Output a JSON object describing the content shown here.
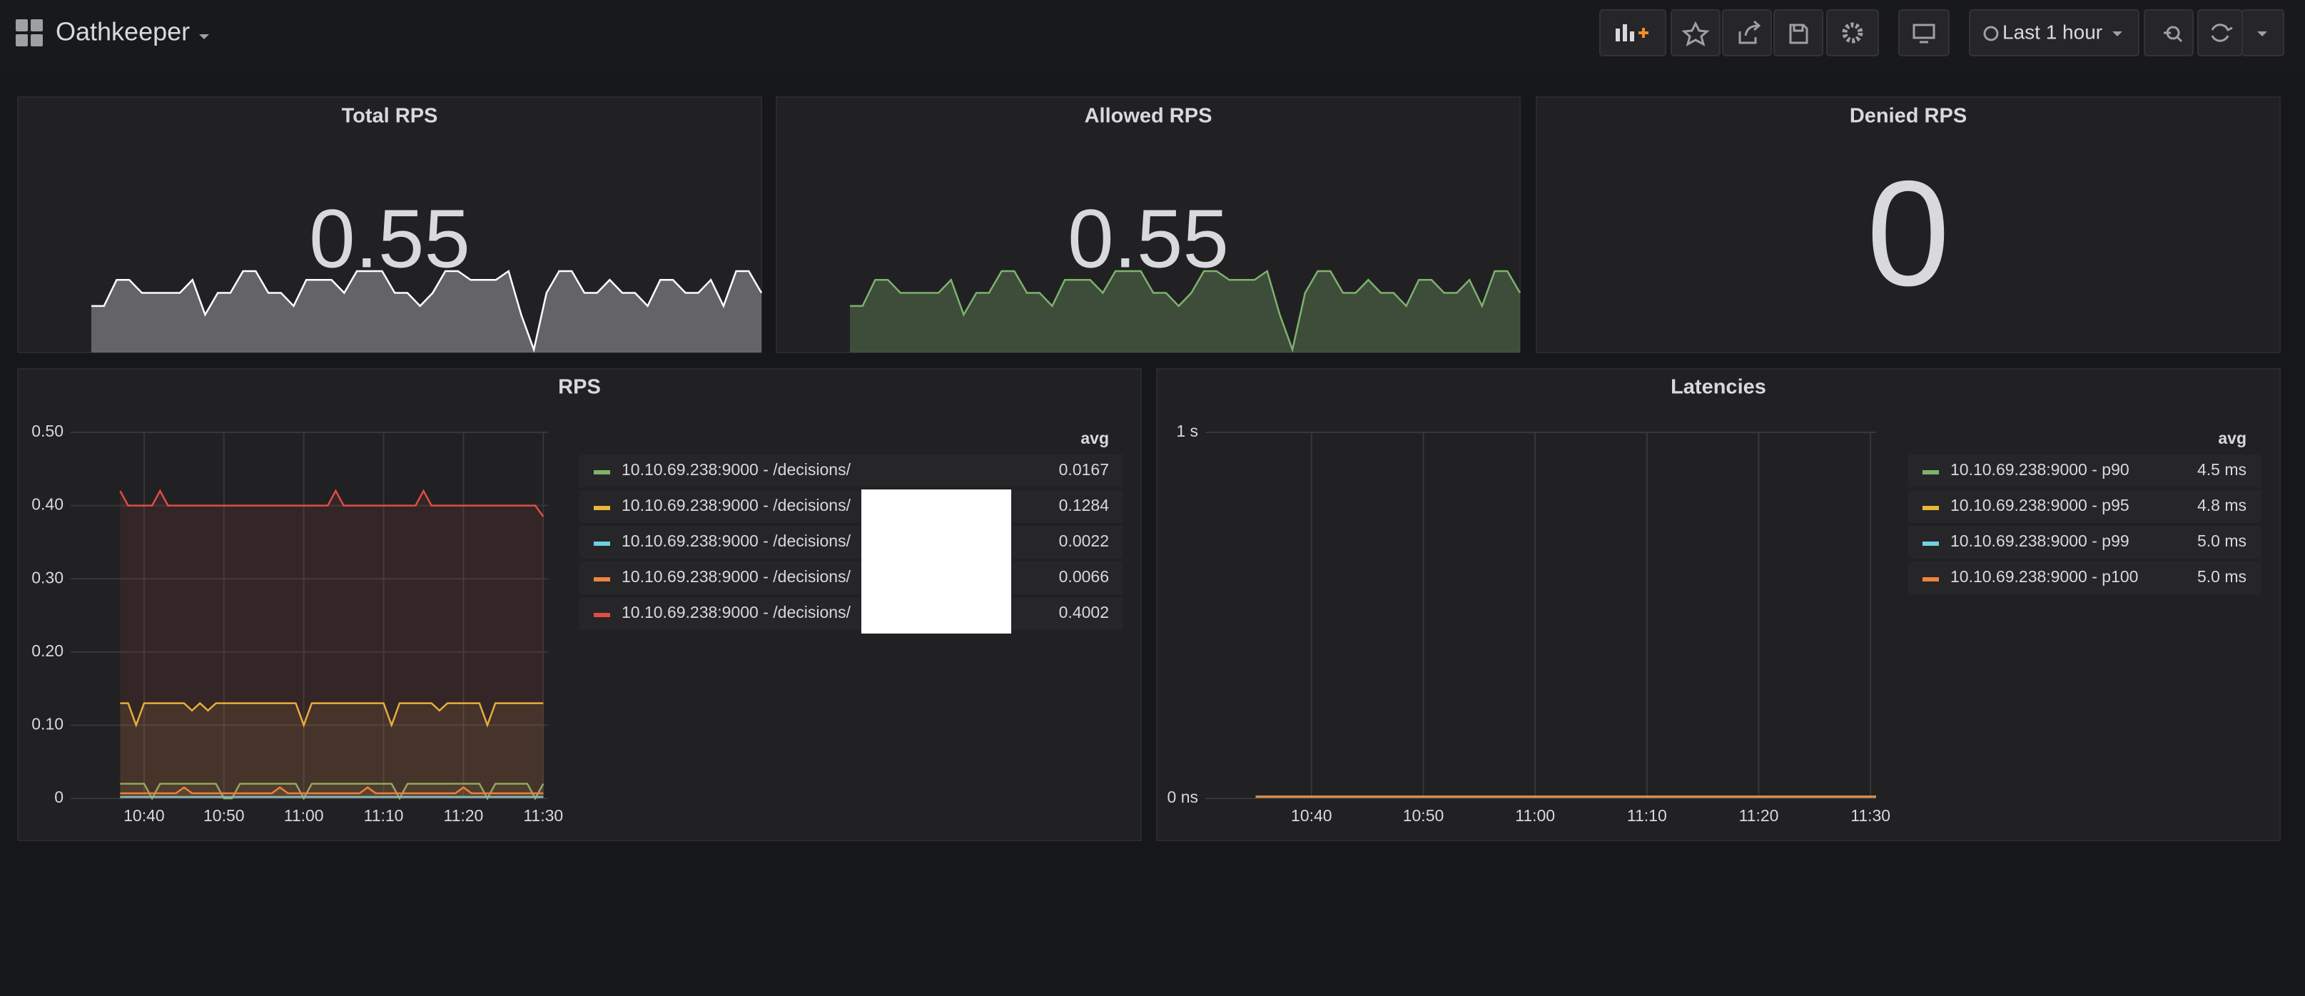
{
  "header": {
    "title": "Oathkeeper",
    "time_range": "Last 1 hour"
  },
  "panels": [
    {
      "type": "stat",
      "title": "Total RPS",
      "value": 0.55,
      "color": "#ffffff",
      "sparkline_color": "#ffffff",
      "sparkline": [
        0.52,
        0.52,
        0.58,
        0.58,
        0.55,
        0.55,
        0.55,
        0.55,
        0.58,
        0.5,
        0.55,
        0.55,
        0.6,
        0.6,
        0.55,
        0.55,
        0.52,
        0.58,
        0.58,
        0.58,
        0.55,
        0.6,
        0.6,
        0.6,
        0.55,
        0.55,
        0.52,
        0.55,
        0.6,
        0.6,
        0.58,
        0.58,
        0.58,
        0.6,
        0.5,
        0.42,
        0.55,
        0.6,
        0.6,
        0.55,
        0.55,
        0.58,
        0.55,
        0.55,
        0.52,
        0.58,
        0.58,
        0.55,
        0.55,
        0.58,
        0.52,
        0.6,
        0.6,
        0.55
      ]
    },
    {
      "type": "stat",
      "title": "Allowed RPS",
      "value": 0.55,
      "color": "#7eb26d",
      "sparkline_color": "#7eb26d",
      "sparkline": [
        0.52,
        0.52,
        0.58,
        0.58,
        0.55,
        0.55,
        0.55,
        0.55,
        0.58,
        0.5,
        0.55,
        0.55,
        0.6,
        0.6,
        0.55,
        0.55,
        0.52,
        0.58,
        0.58,
        0.58,
        0.55,
        0.6,
        0.6,
        0.6,
        0.55,
        0.55,
        0.52,
        0.55,
        0.6,
        0.6,
        0.58,
        0.58,
        0.58,
        0.6,
        0.5,
        0.42,
        0.55,
        0.6,
        0.6,
        0.55,
        0.55,
        0.58,
        0.55,
        0.55,
        0.52,
        0.58,
        0.58,
        0.55,
        0.55,
        0.58,
        0.52,
        0.6,
        0.6,
        0.55
      ]
    },
    {
      "type": "stat",
      "title": "Denied RPS",
      "value": 0,
      "color": "#c4162a"
    },
    {
      "type": "graph",
      "title": "RPS",
      "legend_header": "avg",
      "xlim": [
        630.8,
        690.6
      ],
      "xticks": [
        {
          "value": 640,
          "label": "10:40"
        },
        {
          "value": 650,
          "label": "10:50"
        },
        {
          "value": 660,
          "label": "11:00"
        },
        {
          "value": 670,
          "label": "11:10"
        },
        {
          "value": 680,
          "label": "11:20"
        },
        {
          "value": 690,
          "label": "11:30"
        }
      ],
      "ylim": [
        0,
        0.5
      ],
      "yticks": [
        0,
        {
          "value": 0.1,
          "label": "0.10"
        },
        {
          "value": 0.2,
          "label": "0.20"
        },
        {
          "value": 0.3,
          "label": "0.30"
        },
        {
          "value": 0.4,
          "label": "0.40"
        },
        {
          "value": 0.5,
          "label": "0.50"
        }
      ],
      "x": [
        637,
        638,
        639,
        640,
        641,
        642,
        643,
        644,
        645,
        646,
        647,
        648,
        649,
        650,
        651,
        652,
        653,
        654,
        655,
        656,
        657,
        658,
        659,
        660,
        661,
        662,
        663,
        664,
        665,
        666,
        667,
        668,
        669,
        670,
        671,
        672,
        673,
        674,
        675,
        676,
        677,
        678,
        679,
        680,
        681,
        682,
        683,
        684,
        685,
        686,
        687,
        688,
        689,
        690
      ],
      "series": [
        {
          "name": "10.10.69.238:9000 - /decisions/",
          "color": "#7eb26d",
          "avg": 0.0167,
          "values": [
            0.02,
            0.02,
            0.02,
            0.02,
            0,
            0.02,
            0.02,
            0.02,
            0.02,
            0.02,
            0.02,
            0.02,
            0.02,
            0,
            0,
            0.02,
            0.02,
            0.02,
            0.02,
            0.02,
            0.02,
            0.02,
            0.02,
            0,
            0.02,
            0.02,
            0.02,
            0.02,
            0.02,
            0.02,
            0.02,
            0.02,
            0.02,
            0.02,
            0.02,
            0,
            0.02,
            0.02,
            0.02,
            0.02,
            0.02,
            0.02,
            0.02,
            0.02,
            0.02,
            0.02,
            0,
            0.02,
            0.02,
            0.02,
            0.02,
            0.02,
            0,
            0.02
          ]
        },
        {
          "name": "10.10.69.238:9000 - /decisions/",
          "color": "#eab839",
          "avg": 0.1284,
          "values": [
            0.13,
            0.13,
            0.1,
            0.13,
            0.13,
            0.13,
            0.13,
            0.13,
            0.13,
            0.12,
            0.13,
            0.12,
            0.13,
            0.13,
            0.13,
            0.13,
            0.13,
            0.13,
            0.13,
            0.13,
            0.13,
            0.13,
            0.13,
            0.1,
            0.13,
            0.13,
            0.13,
            0.13,
            0.13,
            0.13,
            0.13,
            0.13,
            0.13,
            0.13,
            0.1,
            0.13,
            0.13,
            0.13,
            0.13,
            0.13,
            0.12,
            0.13,
            0.13,
            0.13,
            0.13,
            0.13,
            0.1,
            0.13,
            0.13,
            0.13,
            0.13,
            0.13,
            0.13,
            0.13
          ]
        },
        {
          "name": "10.10.69.238:9000 - /decisions/",
          "color": "#6ed0e0",
          "avg": 0.0022,
          "values": [
            0.002,
            0.002,
            0.002,
            0.002,
            0.002,
            0.002,
            0.002,
            0.002,
            0.002,
            0.002,
            0.002,
            0.002,
            0.002,
            0.002,
            0.002,
            0.002,
            0.002,
            0.002,
            0.002,
            0.002,
            0.002,
            0.002,
            0.002,
            0.002,
            0.002,
            0.002,
            0.002,
            0.002,
            0.002,
            0.002,
            0.002,
            0.002,
            0.002,
            0.002,
            0.002,
            0.002,
            0.002,
            0.002,
            0.002,
            0.002,
            0.002,
            0.002,
            0.002,
            0.002,
            0.002,
            0.002,
            0.002,
            0.002,
            0.002,
            0.002,
            0.002,
            0.002,
            0.002,
            0.002
          ]
        },
        {
          "name": "10.10.69.238:9000 - /decisions/",
          "color": "#ef843c",
          "avg": 0.0066,
          "values": [
            0.007,
            0.007,
            0.007,
            0.007,
            0.007,
            0.007,
            0.007,
            0.007,
            0.015,
            0.007,
            0.007,
            0.007,
            0.007,
            0.007,
            0.007,
            0.007,
            0.007,
            0.007,
            0.007,
            0.007,
            0.015,
            0.007,
            0.007,
            0.007,
            0.007,
            0.007,
            0.007,
            0.007,
            0.007,
            0.007,
            0.007,
            0.015,
            0.007,
            0.007,
            0.007,
            0.007,
            0.007,
            0.007,
            0.007,
            0.007,
            0.007,
            0.007,
            0.007,
            0.015,
            0.007,
            0.007,
            0.007,
            0.007,
            0.007,
            0.007,
            0.007,
            0.007,
            0.007,
            0.007
          ]
        },
        {
          "name": "10.10.69.238:9000 - /decisions/",
          "color": "#e24d42",
          "avg": 0.4002,
          "values": [
            0.42,
            0.4,
            0.4,
            0.4,
            0.4,
            0.42,
            0.4,
            0.4,
            0.4,
            0.4,
            0.4,
            0.4,
            0.4,
            0.4,
            0.4,
            0.4,
            0.4,
            0.4,
            0.4,
            0.4,
            0.4,
            0.4,
            0.4,
            0.4,
            0.4,
            0.4,
            0.4,
            0.42,
            0.4,
            0.4,
            0.4,
            0.4,
            0.4,
            0.4,
            0.4,
            0.4,
            0.4,
            0.4,
            0.42,
            0.4,
            0.4,
            0.4,
            0.4,
            0.4,
            0.4,
            0.4,
            0.4,
            0.4,
            0.4,
            0.4,
            0.4,
            0.4,
            0.4,
            0.385
          ]
        }
      ]
    },
    {
      "type": "graph",
      "title": "Latencies",
      "legend_header": "avg",
      "xlim": [
        630.5,
        690.5
      ],
      "xticks": [
        {
          "value": 640,
          "label": "10:40"
        },
        {
          "value": 650,
          "label": "10:50"
        },
        {
          "value": 660,
          "label": "11:00"
        },
        {
          "value": 670,
          "label": "11:10"
        },
        {
          "value": 680,
          "label": "11:20"
        },
        {
          "value": 690,
          "label": "11:30"
        }
      ],
      "ylim": [
        0,
        1
      ],
      "yticks": [
        {
          "value": 0,
          "label": "0 ns"
        },
        {
          "value": 1,
          "label": "1 s"
        }
      ],
      "x": [
        635,
        690.5
      ],
      "series": [
        {
          "name": "10.10.69.238:9000 - p90",
          "color": "#7eb26d",
          "avg": "4.5 ms",
          "values": [
            0.0045,
            0.0045
          ]
        },
        {
          "name": "10.10.69.238:9000 - p95",
          "color": "#eab839",
          "avg": "4.8 ms",
          "values": [
            0.0048,
            0.0048
          ]
        },
        {
          "name": "10.10.69.238:9000 - p99",
          "color": "#6ed0e0",
          "avg": "5.0 ms",
          "values": [
            0.005,
            0.005
          ]
        },
        {
          "name": "10.10.69.238:9000 - p100",
          "color": "#ef843c",
          "avg": "5.0 ms",
          "values": [
            0.005,
            0.005
          ]
        }
      ]
    }
  ]
}
